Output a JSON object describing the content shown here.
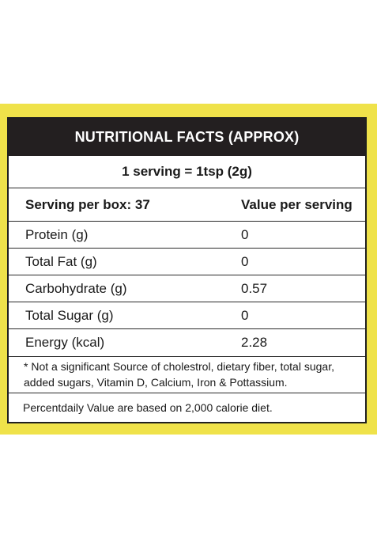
{
  "header": {
    "title": "NUTRITIONAL FACTS (APPROX)"
  },
  "serving": {
    "size": "1 serving = 1tsp (2g)"
  },
  "columns": {
    "left": "Serving per box: 37",
    "right": "Value per serving"
  },
  "rows": [
    {
      "label": "Protein (g)",
      "value": "0"
    },
    {
      "label": "Total Fat (g)",
      "value": "0"
    },
    {
      "label": "Carbohydrate (g)",
      "value": "0.57"
    },
    {
      "label": "Total Sugar (g)",
      "value": "0"
    },
    {
      "label": "Energy (kcal)",
      "value": "2.28"
    }
  ],
  "notes": {
    "footnote": "* Not a significant Source of cholestrol, dietary fiber, total sugar, added sugars, Vitamin D, Calcium, Iron & Pottassium.",
    "daily_value": "Percentdaily Value are based on 2,000 calorie diet."
  },
  "colors": {
    "band": "#efe24a",
    "header_bg": "#231f20",
    "border": "#1f1f1f"
  }
}
